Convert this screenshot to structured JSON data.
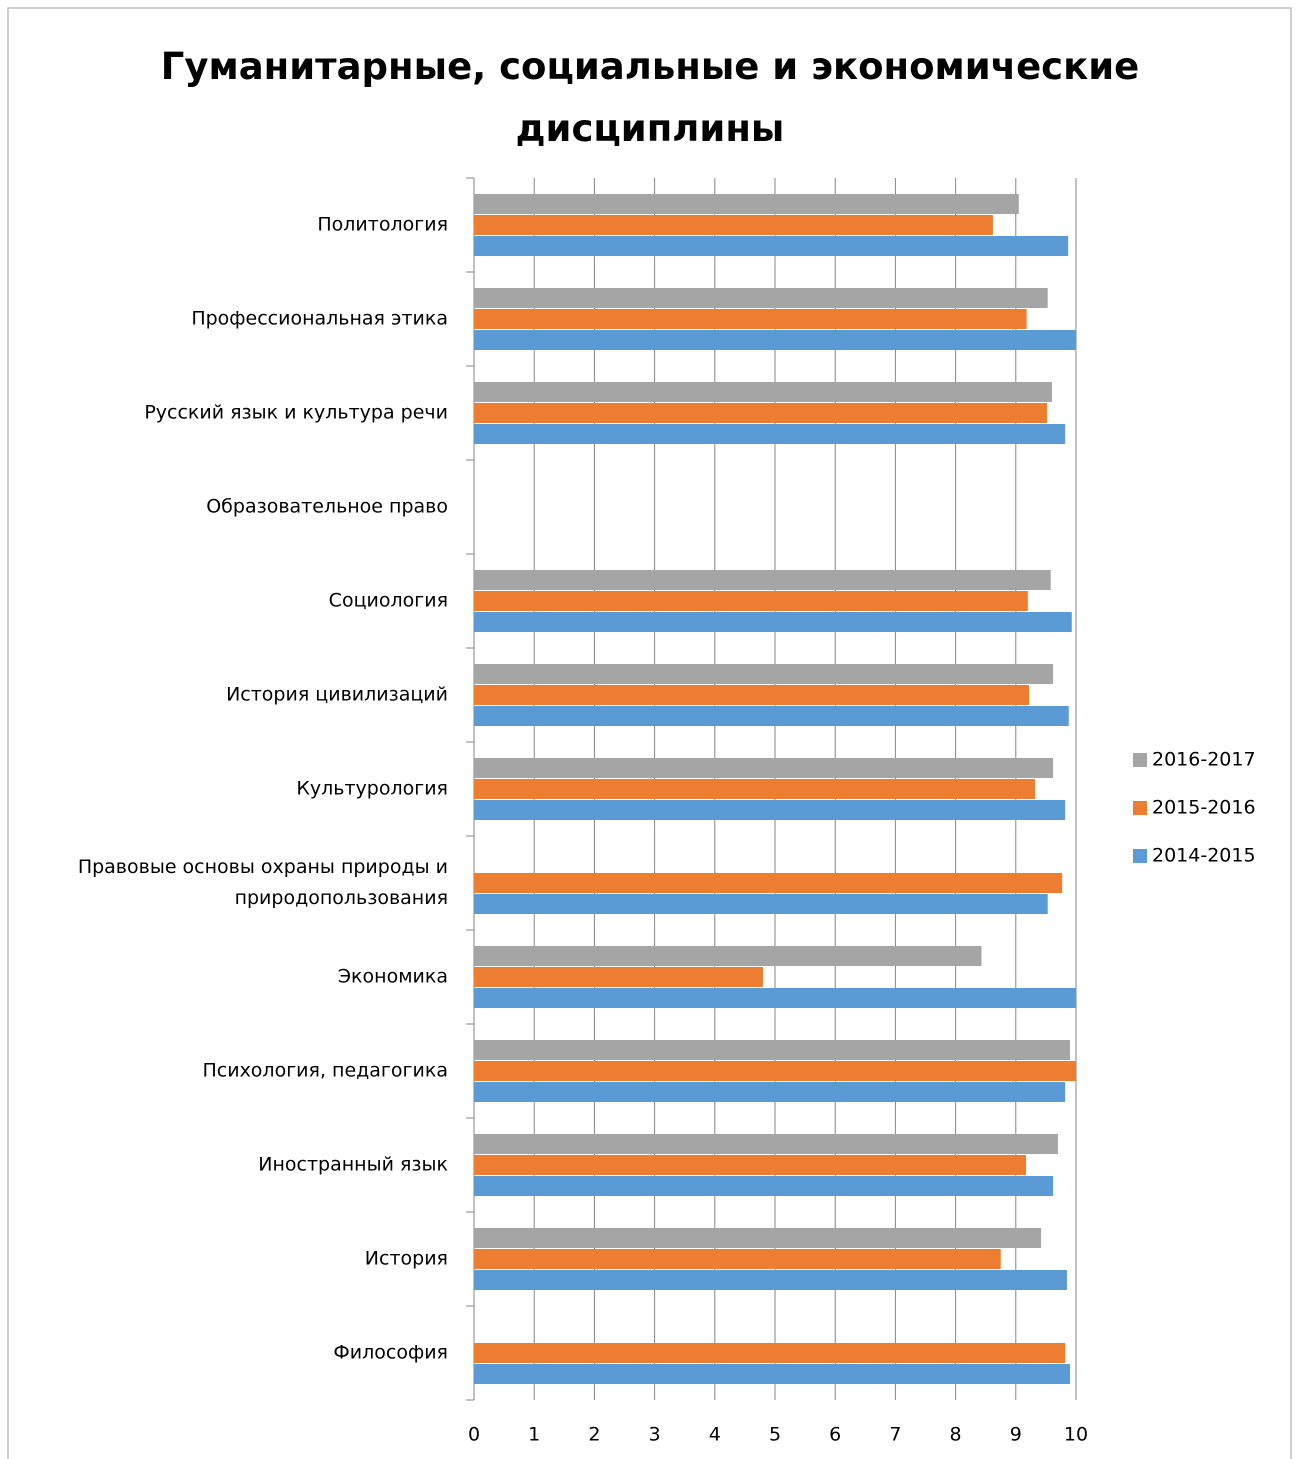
{
  "chart_data": {
    "type": "barh",
    "title": "Гуманитарные, социальные и экономические дисциплины",
    "categories": [
      "Политология",
      "Профессиональная этика",
      "Русский язык и культура речи",
      "Образовательное право",
      "Социология",
      "История цивилизаций",
      "Культурология",
      "Правовые основы охраны природы и природопользования",
      "Экономика",
      "Психология, педагогика",
      "Иностранный язык",
      "История",
      "Философия"
    ],
    "series": [
      {
        "name": "2016-2017",
        "color": "#a5a5a5",
        "values": [
          9.05,
          9.53,
          9.6,
          null,
          9.58,
          9.62,
          9.62,
          null,
          8.43,
          9.9,
          9.7,
          9.42,
          null
        ]
      },
      {
        "name": "2015-2016",
        "color": "#ed7d31",
        "values": [
          8.62,
          9.18,
          9.52,
          null,
          9.2,
          9.22,
          9.32,
          9.77,
          4.8,
          10,
          9.17,
          8.75,
          9.82
        ]
      },
      {
        "name": "2014-2015",
        "color": "#5b9bd5",
        "values": [
          9.87,
          10,
          9.82,
          null,
          9.93,
          9.88,
          9.82,
          9.53,
          10,
          9.82,
          9.62,
          9.85,
          9.9
        ]
      }
    ],
    "xlim": [
      0,
      10
    ],
    "xticks": [
      0,
      1,
      2,
      3,
      4,
      5,
      6,
      7,
      8,
      9,
      10
    ],
    "grid": true,
    "legend": "right"
  }
}
